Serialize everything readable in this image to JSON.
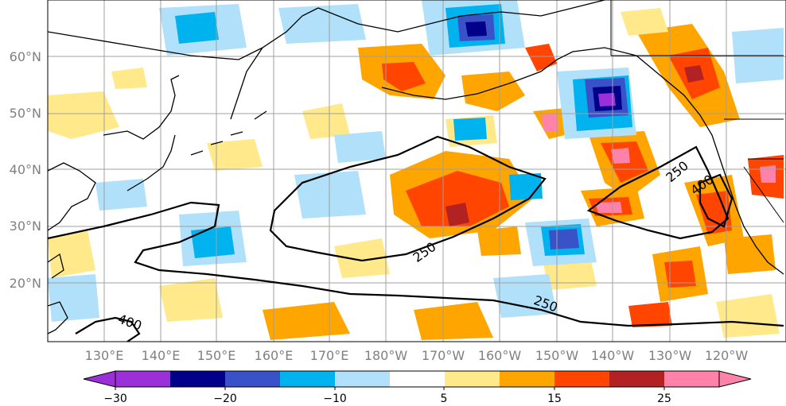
{
  "map": {
    "lat_labels": [
      "60°N",
      "50°N",
      "40°N",
      "30°N",
      "20°N"
    ],
    "lon_labels": [
      "130°E",
      "140°E",
      "150°E",
      "160°E",
      "170°E",
      "180°W",
      "170°W",
      "160°W",
      "150°W",
      "140°W",
      "130°W",
      "120°W"
    ],
    "contour_labels": [
      "250",
      "250",
      "250",
      "400",
      "400"
    ]
  },
  "colorbar": {
    "tick_labels": [
      "−30",
      "−20",
      "−10",
      "5",
      "15",
      "25"
    ],
    "colors": [
      "#9b30d9",
      "#00008b",
      "#3a52c8",
      "#00b2ee",
      "#b0e0fa",
      "#ffffff",
      "#ffe98a",
      "#ffa500",
      "#ff4500",
      "#b22222",
      "#ff82ab"
    ]
  }
}
